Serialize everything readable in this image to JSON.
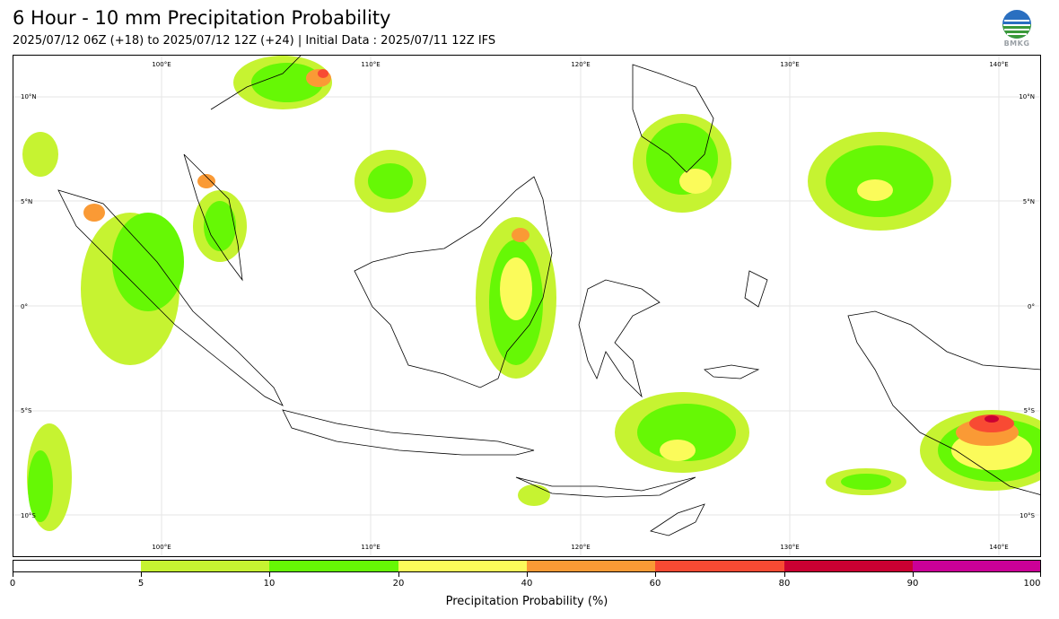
{
  "title": "6 Hour - 10 mm Precipitation Probability",
  "subtitle": "2025/07/12 06Z (+18) to 2025/07/12 12Z (+24) | Initial Data : 2025/07/11 12Z IFS",
  "logo": {
    "icon": "bmkg-logo",
    "text": "BMKG"
  },
  "map": {
    "lon_labels": [
      "100°E",
      "110°E",
      "120°E",
      "130°E",
      "140°E"
    ],
    "lat_labels": [
      "10°N",
      "5°N",
      "0°",
      "5°S",
      "10°S"
    ],
    "colors": {
      "p5_10": "#c6f331",
      "p10_20": "#66f805",
      "p20_40": "#fbfb5a",
      "p40_60": "#fa9a35",
      "p60_80": "#f84a33",
      "p80_90": "#cb0032",
      "p90_100": "#cb0097",
      "coast": "#000000",
      "grid": "#d9d9d9"
    }
  },
  "colorbar": {
    "title": "Precipitation Probability (%)",
    "ticks": [
      "0",
      "5",
      "10",
      "20",
      "40",
      "60",
      "80",
      "90",
      "100"
    ],
    "segments": [
      {
        "range": "0-5",
        "color": "#ffffff"
      },
      {
        "range": "5-10",
        "color": "#c6f331"
      },
      {
        "range": "10-20",
        "color": "#66f805"
      },
      {
        "range": "20-40",
        "color": "#fbfb5a"
      },
      {
        "range": "40-60",
        "color": "#fa9a35"
      },
      {
        "range": "60-80",
        "color": "#f84a33"
      },
      {
        "range": "80-90",
        "color": "#cb0032"
      },
      {
        "range": "90-100",
        "color": "#cb0097"
      }
    ]
  }
}
